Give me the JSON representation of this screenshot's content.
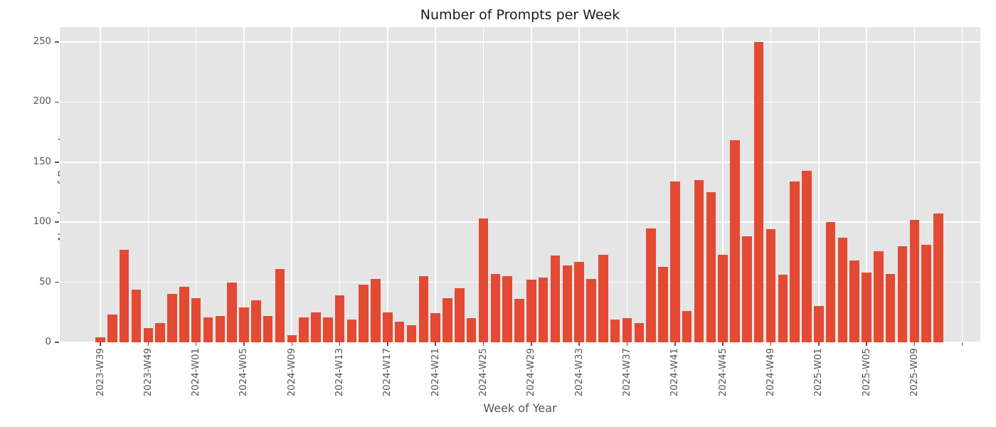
{
  "chart_data": {
    "type": "bar",
    "title": "Number of Prompts per Week",
    "xlabel": "Week of Year",
    "ylabel": "Number of Prompts",
    "values": [
      4,
      23,
      77,
      44,
      12,
      16,
      40,
      46,
      37,
      21,
      22,
      50,
      29,
      35,
      22,
      61,
      6,
      21,
      25,
      21,
      39,
      19,
      48,
      53,
      25,
      17,
      14,
      55,
      24,
      37,
      45,
      20,
      103,
      57,
      55,
      36,
      52,
      54,
      72,
      64,
      67,
      53,
      73,
      19,
      20,
      16,
      95,
      63,
      134,
      26,
      135,
      125,
      73,
      168,
      88,
      250,
      94,
      56,
      134,
      143,
      30,
      100,
      87,
      68,
      58,
      76,
      57,
      80,
      102,
      81,
      107
    ],
    "x_tick_labels": [
      "2023-W39",
      "2023-W49",
      "2024-W01",
      "2024-W05",
      "2024-W09",
      "2024-W13",
      "2024-W17",
      "2024-W21",
      "2024-W25",
      "2024-W29",
      "2024-W33",
      "2024-W37",
      "2024-W41",
      "2024-W45",
      "2024-W49",
      "2025-W01",
      "2025-W05",
      "2025-W09",
      ""
    ],
    "x_tick_step": 4,
    "y_ticks": [
      0,
      50,
      100,
      150,
      200,
      250
    ],
    "ylim": [
      0,
      262.5
    ],
    "grid": true,
    "legend_position": "none",
    "colors": {
      "bar": "#e24a33",
      "plot_background": "#e5e5e5",
      "figure_background": "#ffffff",
      "grid": "#ffffff",
      "tick_text": "#555555",
      "title_text": "#1a1a1a"
    }
  }
}
